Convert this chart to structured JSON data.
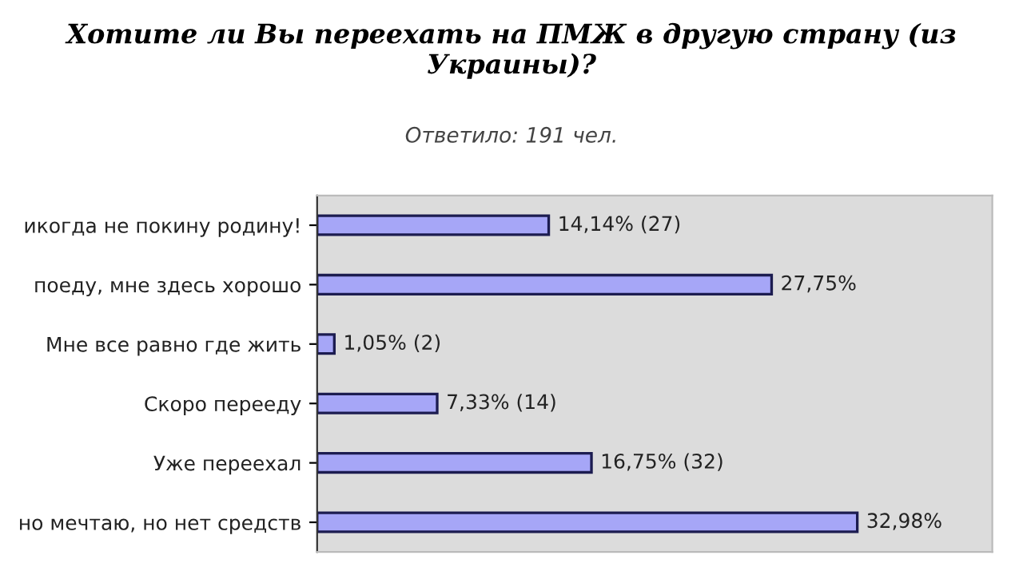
{
  "chart_data": {
    "type": "bar",
    "orientation": "horizontal",
    "title": "Хотите ли Вы переехать на ПМЖ в другую страну (из Украины)?",
    "subtitle": "Ответило: 191 чел.",
    "categories": [
      "икогда не покину родину!",
      "поеду, мне здесь хорошо",
      "Мне все равно где жить",
      "Скоро перееду",
      "Уже переехал",
      "но мечтаю, но нет средств"
    ],
    "values": [
      14.14,
      27.75,
      1.05,
      7.33,
      16.75,
      32.98
    ],
    "value_labels": [
      "14,14% (27)",
      "27,75%",
      "1,05% (2)",
      "7,33% (14)",
      "16,75% (32)",
      "32,98%"
    ],
    "color": "#a6a6f7",
    "grid": false,
    "legend": false
  }
}
